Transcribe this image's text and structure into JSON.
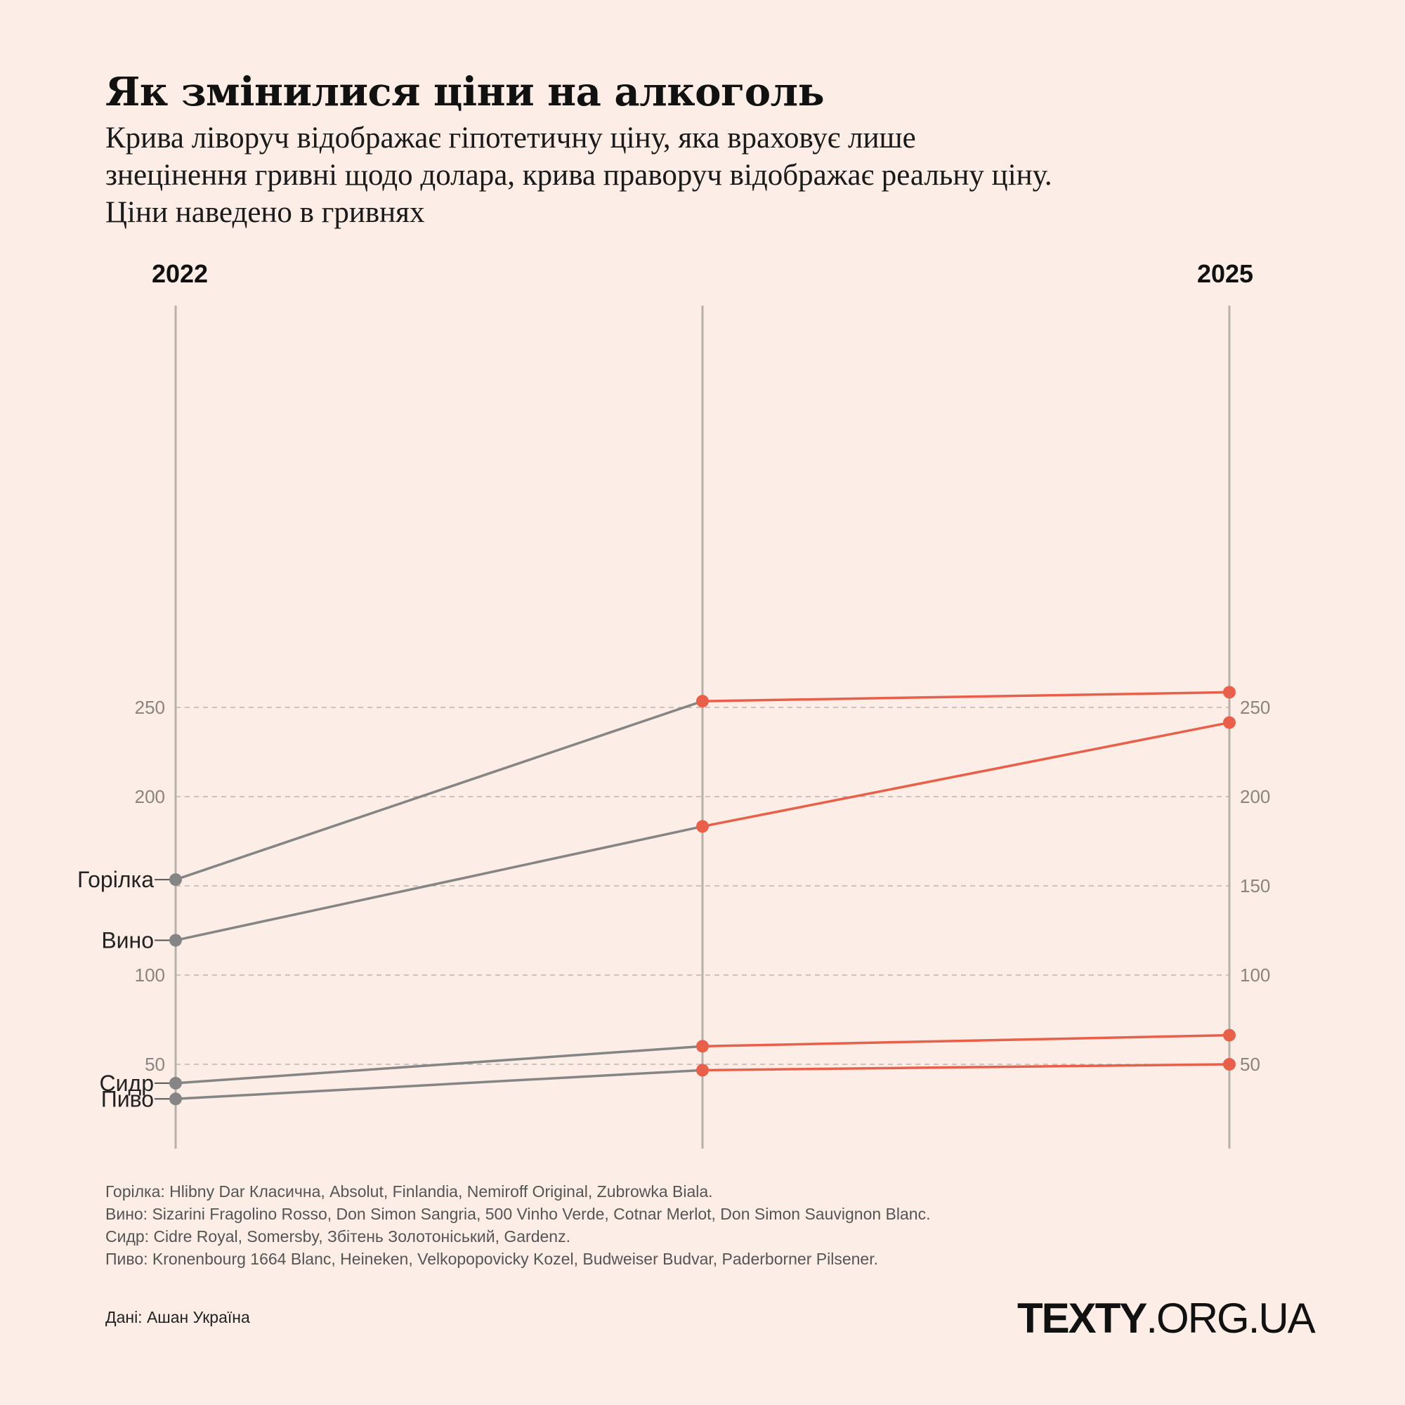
{
  "title": "Як змінилися ціни на алкоголь",
  "subtitle": [
    "Крива ліворуч відображає гіпотетичну ціну, яка враховує лише",
    "знецінення гривні щодо долара, крива праворуч відображає реальну ціну.",
    "Ціни наведено в гривнях"
  ],
  "chart_data": {
    "type": "line",
    "x": [
      "2022",
      "",
      "2025"
    ],
    "year_labels": {
      "left": "2022",
      "right": "2025"
    },
    "y_ticks": [
      50,
      100,
      200,
      250
    ],
    "y_ticks_right": [
      50,
      100,
      150,
      200,
      250
    ],
    "ylim": [
      28,
      263
    ],
    "grid_values": [
      50,
      100,
      150,
      200,
      250
    ],
    "grid": true,
    "series": [
      {
        "name": "Горілка",
        "values": [
          153.5,
          253.5,
          258.5
        ]
      },
      {
        "name": "Вино",
        "values": [
          119.5,
          183.3,
          241.5
        ]
      },
      {
        "name": "Сидр",
        "values": [
          39.4,
          60.1,
          66.3
        ]
      },
      {
        "name": "Пиво",
        "values": [
          30.6,
          46.7,
          50
        ]
      }
    ],
    "colors": {
      "hypothetical": "#858585",
      "real": "#e8604a",
      "axis": "#b8b0ab",
      "grid": "#bdb5b0"
    }
  },
  "notes": [
    "Горілка: Hlibny Dar Класична, Absolut, Finlandia, Nemiroff Original, Zubrowka Biala.",
    "Вино: Sizarini Fragolino Rosso, Don Simon Sangria, 500 Vinho Verde, Cotnar Merlot, Don Simon Sauvignon Blanc.",
    "Сидр: Cidre Royal, Somersby, Збітень Золотоніський, Gardenz.",
    "Пиво: Kronenbourg 1664 Blanc, Heineken, Velkopopovicky Kozel, Budweiser Budvar, Paderborner Pilsener."
  ],
  "source": "Дані: Ашан Україна",
  "logo": {
    "bold": "TEXTY",
    "rest": ".ORG.UA"
  }
}
